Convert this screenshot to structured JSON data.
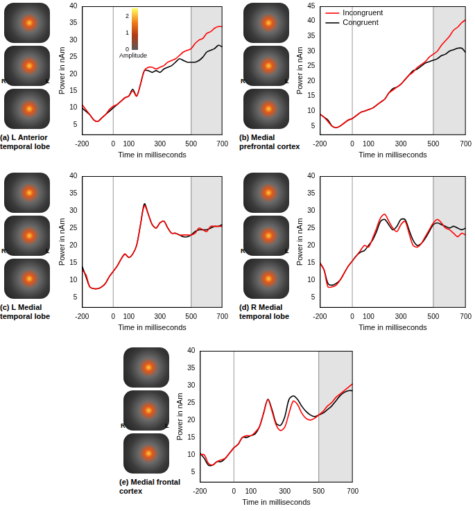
{
  "chart_data": [
    {
      "type": "line",
      "title": "(a) L Anterior temporal lobe",
      "x_label": "Time in milliseconds",
      "y_label": "Power in nAm",
      "x": [
        -200,
        -175,
        -150,
        -125,
        -100,
        -75,
        -50,
        -25,
        0,
        25,
        50,
        75,
        100,
        125,
        150,
        175,
        200,
        225,
        250,
        275,
        300,
        325,
        350,
        375,
        400,
        425,
        450,
        475,
        500,
        525,
        550,
        575,
        600,
        625,
        650,
        675,
        700
      ],
      "series": [
        {
          "name": "Incongruent",
          "color": "#ff0000",
          "values": [
            11,
            9.5,
            8,
            6.5,
            6,
            7,
            8,
            9.5,
            10.5,
            11,
            12,
            13,
            13.5,
            15,
            13.5,
            17,
            21,
            22,
            22,
            21.5,
            22,
            22.5,
            23.5,
            24,
            24.5,
            25.5,
            26.5,
            27,
            27.5,
            29,
            30,
            30.5,
            32,
            32.5,
            33.5,
            34,
            34
          ]
        },
        {
          "name": "Congruent",
          "color": "#000000",
          "values": [
            10,
            9,
            8,
            6.5,
            6,
            7,
            8,
            9,
            10,
            11,
            12,
            13,
            13.5,
            15.5,
            13.5,
            17,
            21,
            21,
            20.5,
            21,
            20.5,
            21.5,
            22,
            22.5,
            23.5,
            24.5,
            24,
            23.5,
            23.5,
            23.5,
            24,
            25,
            26.5,
            27,
            27.5,
            28.5,
            28
          ]
        }
      ],
      "xlim": [
        -200,
        700
      ],
      "xticks": [
        -200,
        0,
        100,
        300,
        500,
        700
      ],
      "ylim": [
        2,
        40
      ],
      "yticks": [
        5,
        10,
        15,
        20,
        25,
        30,
        35,
        40
      ],
      "shaded_region": [
        500,
        700
      ],
      "vertical_line": 0,
      "grid": false,
      "annotations": [
        "R",
        "L"
      ],
      "colorbar": {
        "label": "Amplitude",
        "range": [
          0,
          2.5
        ],
        "ticks": [
          0,
          1,
          2
        ]
      }
    },
    {
      "type": "line",
      "title": "(b) Medial prefrontal cortex",
      "x_label": "Time in milliseconds",
      "y_label": "Power in nAm",
      "x": [
        -200,
        -175,
        -150,
        -125,
        -100,
        -75,
        -50,
        -25,
        0,
        25,
        50,
        75,
        100,
        125,
        150,
        175,
        200,
        225,
        250,
        275,
        300,
        325,
        350,
        375,
        400,
        425,
        450,
        475,
        500,
        525,
        550,
        575,
        600,
        625,
        650,
        675,
        700
      ],
      "series": [
        {
          "name": "Incongruent",
          "color": "#ff0000",
          "values": [
            9,
            8,
            6.5,
            5,
            4.5,
            5,
            6,
            7,
            7.5,
            8.5,
            9.5,
            10,
            10.5,
            11,
            12,
            13,
            14,
            16,
            17,
            18,
            19,
            20.5,
            22,
            23,
            24.5,
            25.5,
            26.5,
            28,
            29,
            30,
            32,
            33.5,
            35,
            37,
            38,
            39.5,
            40.5
          ]
        },
        {
          "name": "Congruent",
          "color": "#000000",
          "values": [
            9,
            8,
            7,
            5,
            4.5,
            5,
            6,
            7,
            7.5,
            8.5,
            9.5,
            10,
            10.5,
            11,
            12,
            13,
            14,
            16,
            17.5,
            18,
            19,
            20.5,
            22,
            23.5,
            24,
            25,
            26,
            26.5,
            27,
            27.5,
            28.5,
            29,
            30,
            30.5,
            31,
            31,
            29.5
          ]
        }
      ],
      "xlim": [
        -200,
        700
      ],
      "xticks": [
        -200,
        0,
        100,
        300,
        500,
        700
      ],
      "ylim": [
        2,
        45
      ],
      "yticks": [
        5,
        10,
        15,
        20,
        25,
        30,
        35,
        40,
        45
      ],
      "shaded_region": [
        500,
        700
      ],
      "vertical_line": 0,
      "grid": false,
      "legend": "top-left",
      "annotations": [
        "R",
        "L"
      ]
    },
    {
      "type": "line",
      "title": "(c) L Medial temporal lobe",
      "x_label": "Time in milliseconds",
      "y_label": "Power in nAm",
      "x": [
        -200,
        -175,
        -150,
        -125,
        -100,
        -75,
        -50,
        -25,
        0,
        25,
        50,
        75,
        100,
        125,
        150,
        175,
        200,
        225,
        250,
        275,
        300,
        325,
        350,
        375,
        400,
        425,
        450,
        475,
        500,
        525,
        550,
        575,
        600,
        625,
        650,
        675,
        700
      ],
      "series": [
        {
          "name": "Incongruent",
          "color": "#ff0000",
          "values": [
            13,
            11.5,
            8,
            7.5,
            7.5,
            8,
            9,
            11,
            12.5,
            14,
            16,
            17.5,
            16.5,
            17.5,
            20,
            26,
            31.5,
            29,
            26,
            25,
            26.5,
            27,
            25,
            23.5,
            23.5,
            23,
            23,
            23,
            23,
            23.5,
            25,
            24.5,
            24,
            25.5,
            25.5,
            25.5,
            25.5
          ]
        },
        {
          "name": "Congruent",
          "color": "#000000",
          "values": [
            14,
            11,
            8,
            7.5,
            7.5,
            8,
            9,
            11,
            12.5,
            14,
            16,
            17.5,
            16.5,
            17.5,
            20,
            26,
            32,
            29,
            26,
            25,
            26.5,
            27,
            25,
            23.5,
            23.5,
            23,
            22.5,
            22.5,
            23,
            24,
            24.5,
            24.5,
            24.5,
            25,
            25.5,
            25.5,
            26
          ]
        }
      ],
      "xlim": [
        -200,
        700
      ],
      "xticks": [
        -200,
        0,
        100,
        300,
        500,
        700
      ],
      "ylim": [
        2,
        40
      ],
      "yticks": [
        5,
        10,
        15,
        20,
        25,
        30,
        35,
        40
      ],
      "shaded_region": [
        500,
        700
      ],
      "vertical_line": 0,
      "grid": false,
      "annotations": [
        "R",
        "L"
      ]
    },
    {
      "type": "line",
      "title": "(d) R Medial temporal lobe",
      "x_label": "Time in milliseconds",
      "y_label": "Power in nAm",
      "x": [
        -200,
        -175,
        -150,
        -125,
        -100,
        -75,
        -50,
        -25,
        0,
        25,
        50,
        75,
        100,
        125,
        150,
        175,
        200,
        225,
        250,
        275,
        300,
        325,
        350,
        375,
        400,
        425,
        450,
        475,
        500,
        525,
        550,
        575,
        600,
        625,
        650,
        675,
        700
      ],
      "series": [
        {
          "name": "Incongruent",
          "color": "#ff0000",
          "values": [
            15,
            13,
            8,
            8,
            8.5,
            10,
            12,
            14,
            15.5,
            17,
            18.5,
            20,
            19.5,
            22,
            25,
            28,
            29,
            27,
            25,
            24,
            26,
            27,
            23.5,
            20,
            19.5,
            20.5,
            22.5,
            24.5,
            26.5,
            27.5,
            26.5,
            25,
            24.5,
            23.5,
            22.5,
            23.5,
            23
          ]
        },
        {
          "name": "Congruent",
          "color": "#000000",
          "values": [
            15,
            13,
            9,
            8.5,
            9,
            10,
            12,
            14,
            15.5,
            17,
            18,
            18.5,
            20,
            21.5,
            24,
            27,
            27.5,
            26,
            24.5,
            25.5,
            27.5,
            27.5,
            24.5,
            21.5,
            20,
            20.5,
            22,
            24,
            26,
            26.5,
            26,
            25.5,
            25,
            25.5,
            25,
            24.5,
            25
          ]
        }
      ],
      "xlim": [
        -200,
        700
      ],
      "xticks": [
        -200,
        0,
        100,
        300,
        500,
        700
      ],
      "ylim": [
        2,
        40
      ],
      "yticks": [
        5,
        10,
        15,
        20,
        25,
        30,
        35,
        40
      ],
      "shaded_region": [
        500,
        700
      ],
      "vertical_line": 0,
      "grid": false,
      "annotations": [
        "R",
        "L"
      ]
    },
    {
      "type": "line",
      "title": "(e) Medial frontal cortex",
      "x_label": "Time in milliseconds",
      "y_label": "Power in nAm",
      "x": [
        -200,
        -175,
        -150,
        -125,
        -100,
        -75,
        -50,
        -25,
        0,
        25,
        50,
        75,
        100,
        125,
        150,
        175,
        200,
        225,
        250,
        275,
        300,
        325,
        350,
        375,
        400,
        425,
        450,
        475,
        500,
        525,
        550,
        575,
        600,
        625,
        650,
        675,
        700
      ],
      "series": [
        {
          "name": "Incongruent",
          "color": "#ff0000",
          "values": [
            10,
            10,
            7.5,
            7,
            8,
            8.5,
            9,
            10.5,
            12,
            13,
            15,
            15.5,
            15.5,
            16.5,
            18,
            22,
            26,
            22.5,
            18.5,
            17,
            18,
            22,
            25.5,
            24.5,
            22,
            20.5,
            20,
            20.5,
            21.5,
            22.5,
            24,
            25,
            26.5,
            27.5,
            28.5,
            29.5,
            30.5
          ]
        },
        {
          "name": "Congruent",
          "color": "#000000",
          "values": [
            10.5,
            9,
            7,
            7,
            8,
            8,
            9,
            10.5,
            12,
            13,
            15,
            15,
            15.5,
            16,
            18,
            22,
            26,
            23,
            19,
            18.5,
            21,
            26,
            27,
            26,
            24,
            22.5,
            21.5,
            21,
            21.5,
            22,
            23,
            24,
            25.5,
            27,
            28,
            28.5,
            28.5
          ]
        }
      ],
      "xlim": [
        -200,
        700
      ],
      "xticks": [
        -200,
        0,
        100,
        300,
        500,
        700
      ],
      "ylim": [
        2,
        40
      ],
      "yticks": [
        5,
        10,
        15,
        20,
        25,
        30,
        35,
        40
      ],
      "shaded_region": [
        500,
        700
      ],
      "vertical_line": 0,
      "grid": false,
      "annotations": [
        "R",
        "L"
      ]
    }
  ]
}
